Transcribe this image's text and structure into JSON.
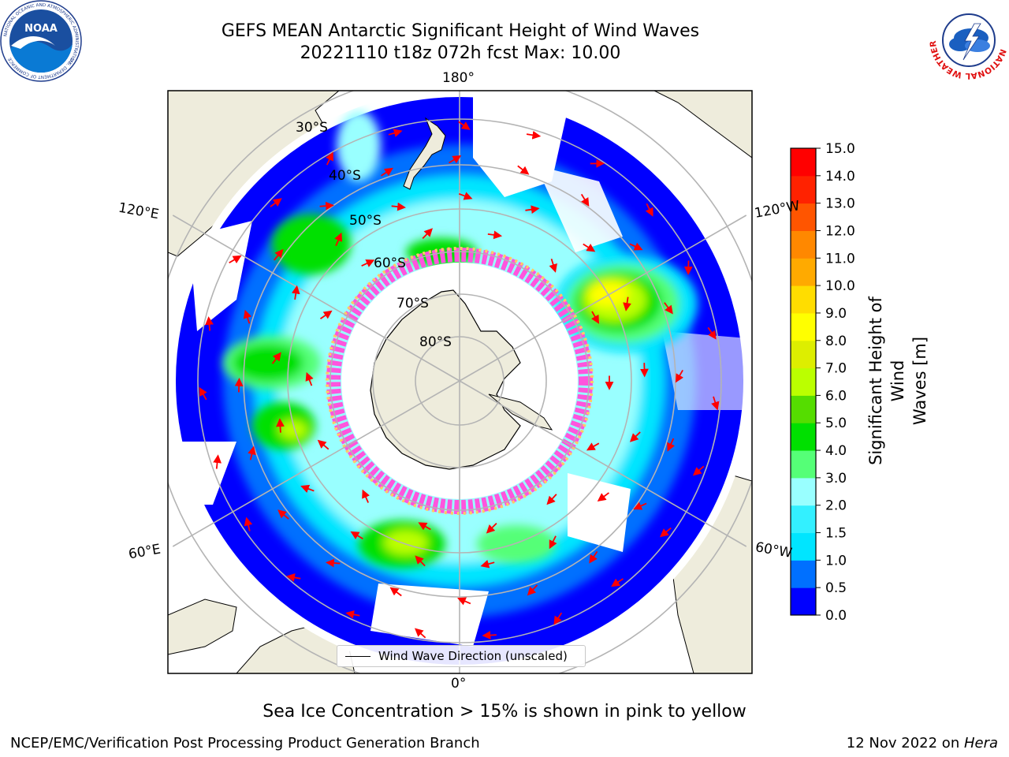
{
  "title": {
    "line1": "GEFS MEAN Antarctic Significant Height of Wind Waves",
    "line2": "20221110 t18z 072h fcst   Max: 10.00"
  },
  "map": {
    "projection": "south-polar-stereographic",
    "lon_labels": [
      "180°",
      "120°E",
      "120°W",
      "60°E",
      "60°W",
      "0°"
    ],
    "lat_labels": [
      "30°S",
      "40°S",
      "50°S",
      "60°S",
      "70°S",
      "80°S"
    ],
    "legend": "Wind Wave Direction (unscaled)",
    "land_color": "#eeecdc",
    "arrow_color": "#ff0000",
    "grid_color": "#b4b4b4",
    "sea_ice_colors": [
      "#ff55dd",
      "#ffcc66"
    ]
  },
  "colorbar": {
    "label": "Significant Height of Wind Waves [m]",
    "label_line1": "Significant Height of Wind",
    "label_line2": "Waves [m]",
    "ticks": [
      "0.0",
      "0.5",
      "1.0",
      "1.5",
      "2.0",
      "3.0",
      "4.0",
      "5.0",
      "6.0",
      "7.0",
      "8.0",
      "9.0",
      "10.0",
      "11.0",
      "12.0",
      "13.0",
      "14.0",
      "15.0"
    ],
    "colors": [
      "#0000ff",
      "#0070ff",
      "#00e5ff",
      "#33f0ff",
      "#99ffff",
      "#55ff77",
      "#00e000",
      "#55dd00",
      "#bbff00",
      "#ddee00",
      "#ffff00",
      "#ffdd00",
      "#ffaa00",
      "#ff8800",
      "#ff5500",
      "#ff2200",
      "#ff0000"
    ]
  },
  "logos": {
    "left_text": "NOAA",
    "left_ring": "NATIONAL OCEANIC AND ATMOSPHERIC ADMINISTRATION",
    "left_dept": "U.S. DEPARTMENT OF COMMERCE",
    "right_ring": "NATIONAL WEATHER SERVICE"
  },
  "caption": "Sea Ice Concentration > 15% is shown in pink to yellow",
  "footer": {
    "left": "NCEP/EMC/Verification Post Processing Product Generation Branch",
    "right_prefix": "12 Nov 2022 on ",
    "right_italic": "Hera"
  }
}
